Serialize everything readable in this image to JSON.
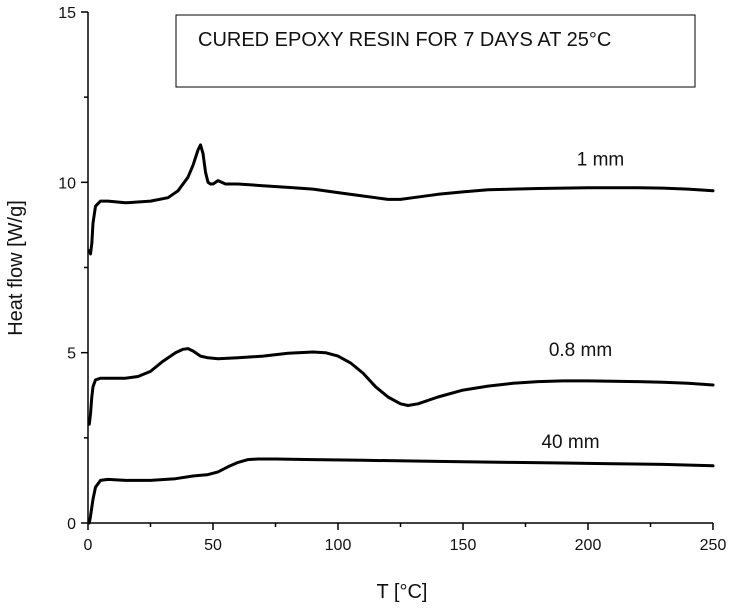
{
  "chart_data": {
    "type": "line",
    "title": "CURED EPOXY RESIN FOR 7 DAYS AT 25°C",
    "xlabel": "T [°C]",
    "ylabel": "Heat flow [W/g]",
    "xlim": [
      0,
      250
    ],
    "ylim": [
      0,
      15
    ],
    "xticks": [
      0,
      50,
      100,
      150,
      200,
      250
    ],
    "yticks": [
      0,
      5,
      10,
      15
    ],
    "grid": false,
    "legend": "none",
    "series": [
      {
        "name": "1 mm",
        "label_at": [
          205,
          10.5
        ],
        "x": [
          0.5,
          1,
          1.5,
          2,
          3,
          5,
          8,
          15,
          25,
          32,
          36,
          40,
          42,
          44,
          45,
          46,
          47,
          48,
          49,
          50,
          52,
          55,
          60,
          70,
          80,
          90,
          100,
          110,
          115,
          120,
          125,
          130,
          140,
          150,
          160,
          170,
          180,
          190,
          200,
          210,
          220,
          230,
          240,
          250
        ],
        "y": [
          8.0,
          7.9,
          8.2,
          8.8,
          9.3,
          9.45,
          9.45,
          9.4,
          9.45,
          9.55,
          9.75,
          10.15,
          10.5,
          10.95,
          11.1,
          10.85,
          10.3,
          10.0,
          9.95,
          9.95,
          10.05,
          9.95,
          9.95,
          9.9,
          9.85,
          9.8,
          9.7,
          9.6,
          9.55,
          9.5,
          9.5,
          9.55,
          9.65,
          9.72,
          9.78,
          9.8,
          9.82,
          9.83,
          9.84,
          9.84,
          9.84,
          9.83,
          9.8,
          9.75
        ]
      },
      {
        "name": "0.8 mm",
        "label_at": [
          197,
          4.9
        ],
        "x": [
          0.5,
          1,
          1.5,
          2,
          3,
          5,
          8,
          15,
          20,
          25,
          30,
          35,
          38,
          40,
          42,
          45,
          48,
          52,
          60,
          70,
          80,
          90,
          95,
          100,
          105,
          110,
          115,
          120,
          125,
          128,
          132,
          140,
          150,
          160,
          170,
          180,
          190,
          200,
          210,
          220,
          230,
          240,
          250
        ],
        "y": [
          2.9,
          3.2,
          3.7,
          4.0,
          4.2,
          4.25,
          4.25,
          4.25,
          4.3,
          4.45,
          4.75,
          5.0,
          5.1,
          5.12,
          5.05,
          4.9,
          4.85,
          4.82,
          4.85,
          4.9,
          4.98,
          5.02,
          5.0,
          4.9,
          4.7,
          4.4,
          4.0,
          3.7,
          3.5,
          3.45,
          3.5,
          3.7,
          3.9,
          4.02,
          4.1,
          4.15,
          4.17,
          4.17,
          4.16,
          4.15,
          4.13,
          4.1,
          4.05
        ]
      },
      {
        "name": "40 mm",
        "label_at": [
          193,
          2.2
        ],
        "x": [
          0.5,
          1,
          2,
          3,
          5,
          8,
          15,
          25,
          35,
          42,
          48,
          52,
          56,
          60,
          64,
          68,
          75,
          90,
          110,
          130,
          150,
          170,
          190,
          210,
          230,
          250
        ],
        "y": [
          0.0,
          0.2,
          0.7,
          1.05,
          1.25,
          1.28,
          1.25,
          1.25,
          1.3,
          1.38,
          1.42,
          1.5,
          1.65,
          1.78,
          1.86,
          1.88,
          1.88,
          1.86,
          1.84,
          1.82,
          1.8,
          1.78,
          1.76,
          1.74,
          1.72,
          1.68
        ]
      }
    ]
  }
}
